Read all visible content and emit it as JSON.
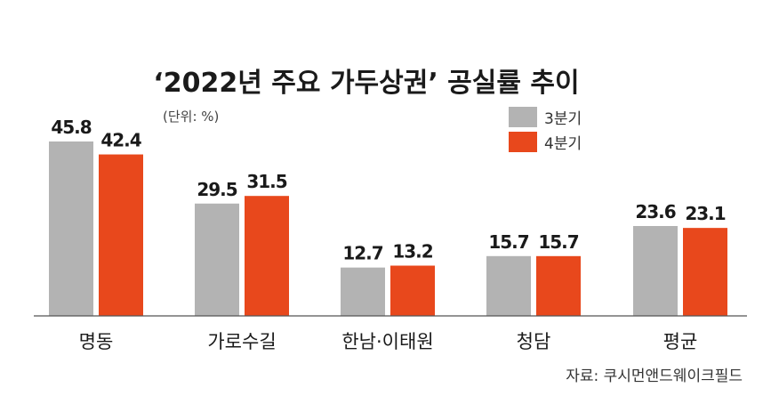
{
  "chart_data": {
    "type": "bar",
    "title": "‘2022년 주요 가두상권’ 공실률 추이",
    "unit_label": "(단위: %)",
    "categories": [
      "명동",
      "가로수길",
      "한남·이태원",
      "청담",
      "평균"
    ],
    "series": [
      {
        "name": "3분기",
        "color": "#b3b3b3",
        "values": [
          45.8,
          29.5,
          12.7,
          15.7,
          23.6
        ]
      },
      {
        "name": "4분기",
        "color": "#e8481c",
        "values": [
          42.4,
          31.5,
          13.2,
          15.7,
          23.1
        ]
      }
    ],
    "ylim": [
      0,
      50
    ],
    "legend_position": "top-right",
    "source": "자료: 쿠시먼앤드웨이크필드"
  }
}
